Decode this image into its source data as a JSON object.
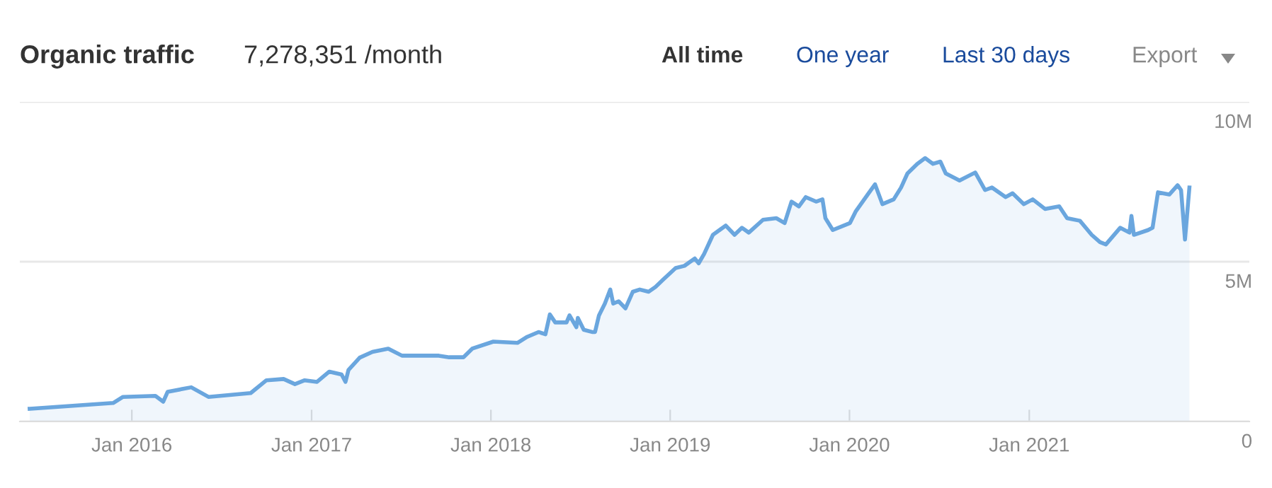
{
  "chart_data": {
    "type": "area",
    "title": "Organic traffic",
    "subtitle": "7,278,351 /month",
    "annotations": [
      "All time",
      "One year",
      "Last 30 days",
      "Export"
    ],
    "xlim": [
      "2015-05-18",
      "2022-03-25"
    ],
    "xticks": [
      {
        "value": "2016-01-01",
        "label": "Jan 2016"
      },
      {
        "value": "2017-01-01",
        "label": "Jan 2017"
      },
      {
        "value": "2018-01-01",
        "label": "Jan 2018"
      },
      {
        "value": "2019-01-01",
        "label": "Jan 2019"
      },
      {
        "value": "2020-01-01",
        "label": "Jan 2020"
      },
      {
        "value": "2021-01-01",
        "label": "Jan 2021"
      }
    ],
    "ylim": [
      0,
      10000000
    ],
    "yticks": [
      {
        "value": 0,
        "label": "0"
      },
      {
        "value": 5000000,
        "label": "5M"
      },
      {
        "value": 10000000,
        "label": "10M"
      }
    ],
    "grid": "y",
    "legend": false,
    "marker": "none",
    "line_style": "solid",
    "series": [
      {
        "color": "#6aa6de",
        "x": [
          "2015-06-07",
          "2015-11-24",
          "2015-12-14",
          "2016-02-18",
          "2016-03-05",
          "2016-03-14",
          "2016-05-01",
          "2016-06-05",
          "2016-08-30",
          "2016-10-01",
          "2016-11-05",
          "2016-11-28",
          "2016-12-18",
          "2017-01-12",
          "2017-02-06",
          "2017-03-03",
          "2017-03-11",
          "2017-03-17",
          "2017-04-09",
          "2017-05-05",
          "2017-06-06",
          "2017-07-04",
          "2017-08-21",
          "2017-09-17",
          "2017-10-08",
          "2017-11-06",
          "2017-11-24",
          "2018-01-06",
          "2018-02-24",
          "2018-03-16",
          "2018-04-08",
          "2018-04-22",
          "2018-05-01",
          "2018-05-12",
          "2018-06-04",
          "2018-06-10",
          "2018-06-24",
          "2018-06-27",
          "2018-07-09",
          "2018-07-26",
          "2018-08-01",
          "2018-08-09",
          "2018-08-21",
          "2018-09-01",
          "2018-09-07",
          "2018-09-18",
          "2018-10-02",
          "2018-10-17",
          "2018-10-31",
          "2018-11-18",
          "2018-12-02",
          "2018-12-17",
          "2019-01-12",
          "2019-01-30",
          "2019-02-20",
          "2019-02-28",
          "2019-03-11",
          "2019-03-29",
          "2019-04-24",
          "2019-05-12",
          "2019-05-27",
          "2019-06-10",
          "2019-07-09",
          "2019-08-05",
          "2019-08-22",
          "2019-09-05",
          "2019-09-20",
          "2019-10-04",
          "2019-10-25",
          "2019-11-07",
          "2019-11-13",
          "2019-11-28",
          "2020-01-02",
          "2020-01-14",
          "2020-02-07",
          "2020-02-22",
          "2020-03-08",
          "2020-03-31",
          "2020-04-15",
          "2020-04-28",
          "2020-05-18",
          "2020-06-03",
          "2020-06-19",
          "2020-07-04",
          "2020-07-15",
          "2020-08-12",
          "2020-09-13",
          "2020-10-03",
          "2020-10-17",
          "2020-11-14",
          "2020-11-28",
          "2020-12-21",
          "2021-01-08",
          "2021-02-02",
          "2021-03-03",
          "2021-03-19",
          "2021-04-14",
          "2021-05-08",
          "2021-05-25",
          "2021-06-06",
          "2021-07-05",
          "2021-07-24",
          "2021-07-28",
          "2021-08-02",
          "2021-08-31",
          "2021-09-09",
          "2021-09-20",
          "2021-10-13",
          "2021-10-30",
          "2021-11-06",
          "2021-11-14",
          "2021-11-23"
        ],
        "values": [
          400000,
          580000,
          770000,
          800000,
          620000,
          930000,
          1070000,
          770000,
          890000,
          1290000,
          1330000,
          1170000,
          1290000,
          1240000,
          1560000,
          1470000,
          1240000,
          1610000,
          2000000,
          2180000,
          2280000,
          2060000,
          2060000,
          2060000,
          2010000,
          2010000,
          2280000,
          2500000,
          2460000,
          2650000,
          2800000,
          2730000,
          3350000,
          3100000,
          3100000,
          3320000,
          2950000,
          3240000,
          2870000,
          2800000,
          2800000,
          3320000,
          3690000,
          4130000,
          3690000,
          3760000,
          3540000,
          4060000,
          4130000,
          4060000,
          4210000,
          4430000,
          4800000,
          4870000,
          5100000,
          4950000,
          5240000,
          5840000,
          6130000,
          5840000,
          6060000,
          5910000,
          6310000,
          6360000,
          6210000,
          6880000,
          6730000,
          7020000,
          6880000,
          6950000,
          6360000,
          5990000,
          6210000,
          6580000,
          7100000,
          7420000,
          6800000,
          6950000,
          7320000,
          7760000,
          8060000,
          8240000,
          8060000,
          8130000,
          7760000,
          7540000,
          7790000,
          7240000,
          7320000,
          7020000,
          7140000,
          6800000,
          6950000,
          6650000,
          6730000,
          6360000,
          6280000,
          5840000,
          5610000,
          5540000,
          6060000,
          5910000,
          6430000,
          5840000,
          5990000,
          6060000,
          7170000,
          7100000,
          7390000,
          7240000,
          5690000,
          7320000
        ]
      }
    ]
  }
}
